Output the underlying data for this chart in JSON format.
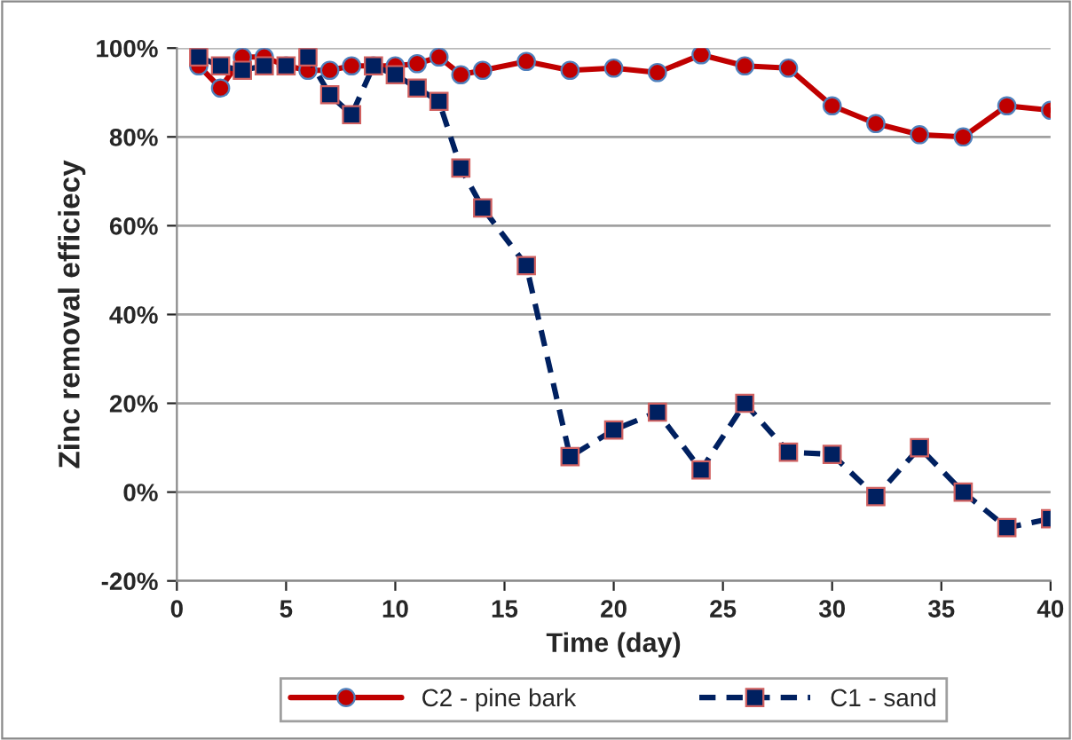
{
  "chart_data": {
    "type": "line",
    "xlabel": "Time (day)",
    "ylabel": "Zinc removal efficiecy",
    "xlim": [
      0,
      40
    ],
    "xticks": [
      0,
      5,
      10,
      15,
      20,
      25,
      30,
      35,
      40
    ],
    "ylim": [
      -20,
      100
    ],
    "yticks": [
      {
        "value": -20,
        "label": "-20%"
      },
      {
        "value": 0,
        "label": "0%"
      },
      {
        "value": 20,
        "label": "20%"
      },
      {
        "value": 40,
        "label": "40%"
      },
      {
        "value": 60,
        "label": "60%"
      },
      {
        "value": 80,
        "label": "80%"
      },
      {
        "value": 100,
        "label": "100%"
      }
    ],
    "grid": "y",
    "legend": "bottom",
    "x": [
      1,
      2,
      3,
      4,
      5,
      6,
      7,
      8,
      9,
      10,
      11,
      12,
      13,
      14,
      16,
      18,
      20,
      22,
      24,
      26,
      28,
      30,
      32,
      34,
      36,
      38,
      40
    ],
    "series": [
      {
        "name": "C2 - pine bark",
        "color": "#c00000",
        "marker": "circle",
        "line_style": "solid",
        "values": [
          96,
          91,
          98,
          98,
          96,
          95,
          95,
          96,
          96,
          96,
          96.5,
          98,
          94,
          95,
          97,
          95,
          95.5,
          94.5,
          98.5,
          96,
          95.5,
          87,
          83,
          80.5,
          80,
          87,
          86
        ]
      },
      {
        "name": "C1 - sand",
        "color": "#002060",
        "marker": "square",
        "line_style": "dashed",
        "values": [
          98,
          96,
          95,
          96,
          96,
          98,
          89.5,
          85,
          96,
          94,
          91,
          88,
          73,
          64,
          51,
          8,
          14,
          18,
          5,
          20,
          9,
          8.5,
          -1,
          10,
          0,
          -8,
          -6
        ]
      }
    ]
  }
}
